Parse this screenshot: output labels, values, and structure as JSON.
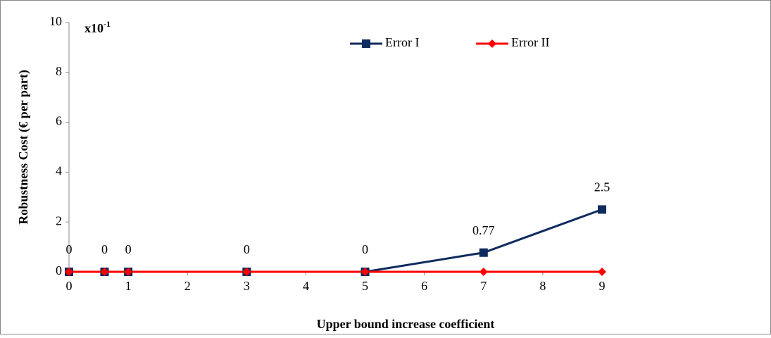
{
  "chart_data": {
    "type": "line",
    "x_label": "Upper bound increase coefficient",
    "y_label": "Robustness Cost (€ per part)",
    "annotation": {
      "base": "x10",
      "exponent": "-1"
    },
    "x": [
      0,
      0.6,
      1,
      3,
      5,
      7,
      9
    ],
    "series": [
      {
        "name": "Error I",
        "color": "#0e2a5e",
        "marker": "square",
        "values": [
          0,
          0,
          0,
          0,
          0,
          0.77,
          2.5
        ],
        "data_labels": true
      },
      {
        "name": "Error II",
        "color": "#ff0000",
        "marker": "diamond",
        "values": [
          0,
          0,
          0,
          0,
          0,
          0,
          0
        ],
        "data_labels": false
      }
    ],
    "xlim": [
      0,
      9
    ],
    "xticks": [
      0,
      1,
      2,
      3,
      4,
      5,
      6,
      7,
      8,
      9
    ],
    "ylim": [
      0,
      10
    ],
    "yticks": [
      0,
      2,
      4,
      6,
      8,
      10
    ],
    "grid": false,
    "legend": "top"
  }
}
